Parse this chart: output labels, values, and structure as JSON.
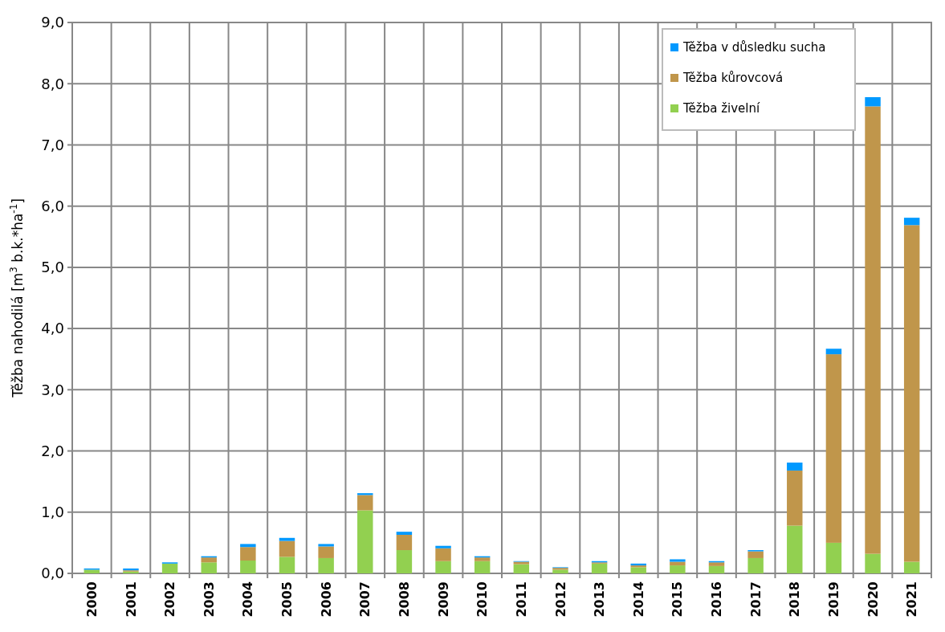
{
  "chart_data": {
    "type": "bar",
    "stacked": true,
    "ylabel": "Těžba  nahodilá [m$^{3}$ b.k.*ha$^{-1}$]",
    "categories": [
      "2000",
      "2001",
      "2002",
      "2003",
      "2004",
      "2005",
      "2006",
      "2007",
      "2008",
      "2009",
      "2010",
      "2011",
      "2012",
      "2013",
      "2014",
      "2015",
      "2016",
      "2017",
      "2018",
      "2019",
      "2020",
      "2021"
    ],
    "series": [
      {
        "name": "Těžba živelní",
        "color": "#92d050",
        "values": [
          0.06,
          0.03,
          0.16,
          0.18,
          0.21,
          0.27,
          0.25,
          1.03,
          0.38,
          0.2,
          0.2,
          0.15,
          0.06,
          0.16,
          0.1,
          0.13,
          0.12,
          0.25,
          0.78,
          0.5,
          0.32,
          0.19
        ]
      },
      {
        "name": "Těžba kůrovcová",
        "color": "#c0964b",
        "values": [
          0.0,
          0.02,
          0.0,
          0.08,
          0.22,
          0.26,
          0.19,
          0.25,
          0.25,
          0.21,
          0.06,
          0.04,
          0.03,
          0.02,
          0.03,
          0.06,
          0.06,
          0.11,
          0.9,
          3.08,
          7.31,
          5.5
        ]
      },
      {
        "name": "Těžba v důsledku sucha",
        "color": "#0099ff",
        "values": [
          0.02,
          0.03,
          0.02,
          0.02,
          0.05,
          0.05,
          0.04,
          0.03,
          0.05,
          0.04,
          0.02,
          0.01,
          0.01,
          0.02,
          0.03,
          0.04,
          0.02,
          0.02,
          0.13,
          0.09,
          0.15,
          0.12
        ]
      }
    ],
    "ylim": [
      0,
      9
    ],
    "yticks": [
      {
        "value": 0,
        "label": "0,0"
      },
      {
        "value": 1,
        "label": "1,0"
      },
      {
        "value": 2,
        "label": "2,0"
      },
      {
        "value": 3,
        "label": "3,0"
      },
      {
        "value": 4,
        "label": "4,0"
      },
      {
        "value": 5,
        "label": "5,0"
      },
      {
        "value": 6,
        "label": "6,0"
      },
      {
        "value": 7,
        "label": "7,0"
      },
      {
        "value": 8,
        "label": "8,0"
      },
      {
        "value": 9,
        "label": "9,0"
      }
    ],
    "grid": true,
    "legend": "top right"
  }
}
